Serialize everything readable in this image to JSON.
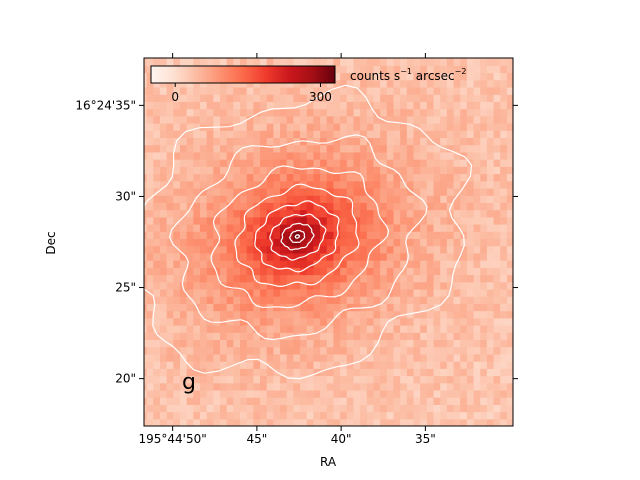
{
  "chart_data": {
    "type": "heatmap",
    "title": "",
    "xlabel": "RA",
    "ylabel": "Dec",
    "colormap": "Reds",
    "x_axis": {
      "direction": "RA increases to the left",
      "range_arcsec": [
        51.7,
        29.8
      ],
      "ticks": [
        {
          "value": 50,
          "label": "195°44'50\""
        },
        {
          "value": 45,
          "label": "45\""
        },
        {
          "value": 40,
          "label": "40\""
        },
        {
          "value": 35,
          "label": "35\""
        }
      ]
    },
    "y_axis": {
      "range_arcsec": [
        17.4,
        37.6
      ],
      "ticks": [
        {
          "value": 35,
          "label": "16°24'35\""
        },
        {
          "value": 30,
          "label": "30\""
        },
        {
          "value": 25,
          "label": "25\""
        },
        {
          "value": 20,
          "label": "20\""
        }
      ]
    },
    "colorbar": {
      "label": "counts s⁻¹ arcsec⁻²",
      "label_base": "counts s",
      "label_exp1": "−1",
      "label_mid": " arcsec",
      "label_exp2": "−2",
      "range": [
        -50,
        330
      ],
      "ticks": [
        {
          "value": 0,
          "label": "0"
        },
        {
          "value": 300,
          "label": "300"
        }
      ],
      "placement": "inset top-left, horizontal"
    },
    "band_label": "g",
    "source": {
      "center_ra_arcsec": 42.6,
      "center_dec_arcsec": 27.8,
      "peak_counts": 320,
      "background_counts": 30,
      "position_angle_deg": 15,
      "major_scale_arcsec": 3.6,
      "minor_scale_arcsec": 2.6
    },
    "contours": {
      "color": "#ffffff",
      "levels": [
        45,
        65,
        95,
        130,
        170,
        210,
        250,
        285,
        310
      ]
    },
    "grid": false,
    "pixel_scale_arcsec": 0.396
  },
  "colors": {
    "contour": "#ffffff",
    "frame": "#000000"
  }
}
